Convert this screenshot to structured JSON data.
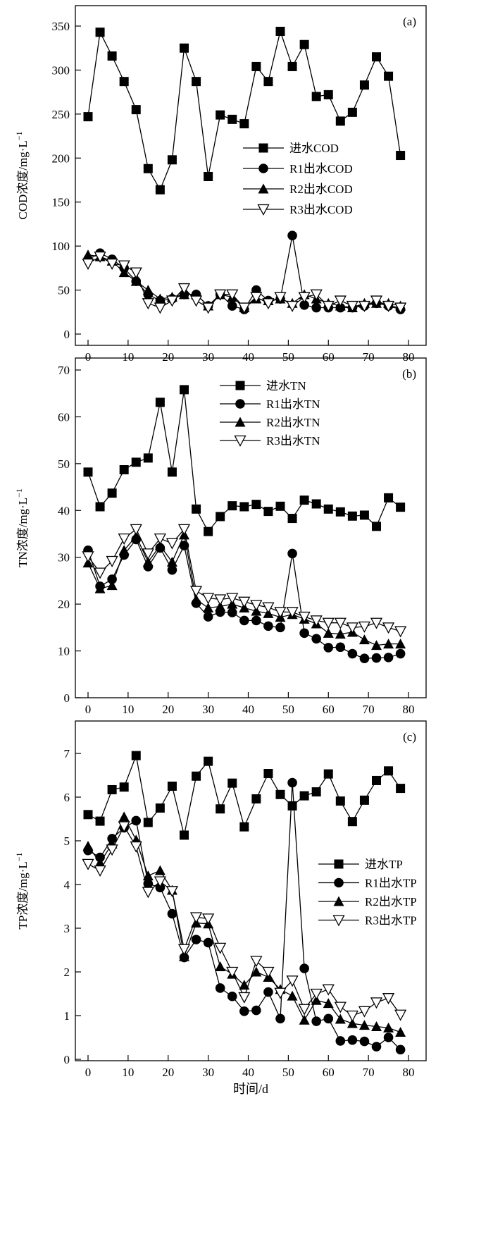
{
  "chart_data": [
    {
      "type": "line",
      "panel_label": "(a)",
      "ylabel": "COD浓度/mg·L",
      "ylabel_sup": "−1",
      "xlabel": "",
      "xlim": [
        -3,
        84
      ],
      "ylim": [
        0,
        375
      ],
      "xticks": [
        0,
        10,
        20,
        30,
        40,
        50,
        60,
        70,
        80
      ],
      "yticks": [
        0,
        50,
        100,
        150,
        200,
        250,
        300,
        350
      ],
      "legend_position": "center-right",
      "x": [
        0,
        3,
        6,
        9,
        12,
        15,
        18,
        21,
        24,
        27,
        30,
        33,
        36,
        39,
        42,
        45,
        48,
        51,
        54,
        57,
        60,
        63,
        66,
        69,
        72,
        75,
        78
      ],
      "series": [
        {
          "name": "进水COD",
          "marker": "square",
          "values": [
            247,
            343,
            316,
            287,
            255,
            188,
            164,
            198,
            325,
            287,
            179,
            249,
            244,
            239,
            304,
            287,
            344,
            304,
            329,
            270,
            272,
            242,
            252,
            283,
            315,
            293,
            203
          ]
        },
        {
          "name": "R1出水COD",
          "marker": "circle",
          "values": [
            85,
            92,
            85,
            75,
            60,
            45,
            38,
            40,
            45,
            45,
            32,
            45,
            32,
            28,
            50,
            38,
            40,
            112,
            33,
            30,
            30,
            30,
            30,
            32,
            35,
            32,
            28
          ]
        },
        {
          "name": "R2出水COD",
          "marker": "triangle",
          "values": [
            90,
            88,
            83,
            70,
            60,
            50,
            40,
            42,
            45,
            45,
            32,
            45,
            42,
            30,
            40,
            38,
            40,
            35,
            45,
            40,
            35,
            32,
            30,
            35,
            35,
            35,
            32
          ]
        },
        {
          "name": "R3出水COD",
          "marker": "triangle-down-open",
          "values": [
            80,
            88,
            80,
            78,
            70,
            35,
            30,
            38,
            52,
            38,
            30,
            45,
            45,
            30,
            42,
            35,
            42,
            32,
            42,
            45,
            32,
            38,
            32,
            32,
            38,
            32,
            30
          ]
        }
      ]
    },
    {
      "type": "line",
      "panel_label": "(b)",
      "ylabel": "TN浓度/mg·L",
      "ylabel_sup": "−1",
      "xlabel": "",
      "xlim": [
        -3,
        84
      ],
      "ylim": [
        0,
        70
      ],
      "xticks": [
        0,
        10,
        20,
        30,
        40,
        50,
        60,
        70,
        80
      ],
      "yticks": [
        0,
        10,
        20,
        30,
        40,
        50,
        60,
        70
      ],
      "legend_position": "top-center",
      "x": [
        0,
        3,
        6,
        9,
        12,
        15,
        18,
        21,
        24,
        27,
        30,
        33,
        36,
        39,
        42,
        45,
        48,
        51,
        54,
        57,
        60,
        63,
        66,
        69,
        72,
        75,
        78
      ],
      "series": [
        {
          "name": "进水TN",
          "marker": "square",
          "values": [
            48.2,
            40.8,
            43.7,
            48.7,
            50.3,
            51.2,
            63.1,
            48.2,
            65.8,
            40.3,
            35.5,
            38.7,
            41.0,
            40.8,
            41.3,
            39.8,
            40.9,
            38.3,
            42.2,
            41.4,
            40.3,
            39.7,
            38.8,
            39.0,
            36.6,
            42.7,
            40.7
          ]
        },
        {
          "name": "R1出水TN",
          "marker": "circle",
          "values": [
            31.5,
            23.8,
            25.3,
            30.5,
            33.8,
            28.0,
            32.0,
            27.3,
            32.5,
            20.2,
            17.3,
            18.3,
            18.2,
            16.5,
            16.5,
            15.3,
            15.0,
            30.8,
            13.8,
            12.6,
            10.7,
            10.8,
            9.4,
            8.4,
            8.5,
            8.6,
            9.4
          ]
        },
        {
          "name": "R2出水TN",
          "marker": "triangle",
          "values": [
            28.8,
            23.3,
            24.0,
            31.5,
            34.5,
            29.0,
            32.5,
            29.0,
            34.8,
            21.0,
            19.2,
            19.5,
            20.0,
            19.2,
            18.5,
            18.0,
            17.2,
            17.8,
            16.8,
            15.8,
            13.8,
            13.6,
            14.0,
            12.4,
            11.2,
            11.5,
            11.5
          ]
        },
        {
          "name": "R3出水TN",
          "marker": "triangle-down-open",
          "values": [
            30.2,
            26.7,
            29.2,
            34.0,
            36.0,
            30.8,
            34.0,
            33.0,
            36.0,
            22.8,
            21.3,
            21.0,
            21.3,
            20.5,
            19.8,
            19.3,
            18.3,
            18.3,
            17.3,
            16.5,
            16.0,
            16.0,
            15.0,
            15.2,
            16.0,
            15.0,
            14.2
          ]
        }
      ]
    },
    {
      "type": "line",
      "panel_label": "(c)",
      "ylabel": "TP浓度/mg·L",
      "ylabel_sup": "−1",
      "xlabel": "时间/d",
      "xlim": [
        -3,
        84
      ],
      "ylim": [
        0,
        7.5
      ],
      "xticks": [
        0,
        10,
        20,
        30,
        40,
        50,
        60,
        70,
        80
      ],
      "yticks": [
        0,
        1,
        2,
        3,
        4,
        5,
        6,
        7
      ],
      "legend_position": "center-right",
      "x": [
        0,
        3,
        6,
        9,
        12,
        15,
        18,
        21,
        24,
        27,
        30,
        33,
        36,
        39,
        42,
        45,
        48,
        51,
        54,
        57,
        60,
        63,
        66,
        69,
        72,
        75,
        78
      ],
      "series": [
        {
          "name": "进水TP",
          "marker": "square",
          "values": [
            5.6,
            5.45,
            6.17,
            6.23,
            6.95,
            5.42,
            5.75,
            6.25,
            5.13,
            6.48,
            6.82,
            5.73,
            6.32,
            5.32,
            5.96,
            6.54,
            6.06,
            5.8,
            6.03,
            6.12,
            6.53,
            5.91,
            5.44,
            5.93,
            6.38,
            6.6,
            6.2
          ]
        },
        {
          "name": "R1出水TP",
          "marker": "circle",
          "values": [
            4.78,
            4.62,
            5.05,
            5.3,
            5.46,
            4.02,
            3.93,
            3.33,
            2.33,
            2.74,
            2.67,
            1.63,
            1.44,
            1.1,
            1.12,
            1.54,
            0.93,
            6.33,
            2.08,
            0.87,
            0.93,
            0.42,
            0.44,
            0.41,
            0.29,
            0.5,
            0.22
          ]
        },
        {
          "name": "R2出水TP",
          "marker": "triangle",
          "values": [
            4.88,
            4.5,
            4.93,
            5.55,
            5.02,
            4.2,
            4.32,
            3.87,
            2.35,
            3.12,
            3.1,
            2.12,
            1.95,
            1.7,
            2.0,
            1.88,
            1.6,
            1.45,
            0.9,
            1.35,
            1.28,
            0.92,
            0.82,
            0.78,
            0.75,
            0.72,
            0.62
          ]
        },
        {
          "name": "R3出水TP",
          "marker": "triangle-down-open",
          "values": [
            4.47,
            4.32,
            4.8,
            5.33,
            4.87,
            3.83,
            4.07,
            3.85,
            2.52,
            3.25,
            3.22,
            2.55,
            2.0,
            1.42,
            2.25,
            2.0,
            1.52,
            1.8,
            1.15,
            1.5,
            1.6,
            1.2,
            1.0,
            1.1,
            1.3,
            1.4,
            1.02
          ]
        }
      ]
    }
  ]
}
